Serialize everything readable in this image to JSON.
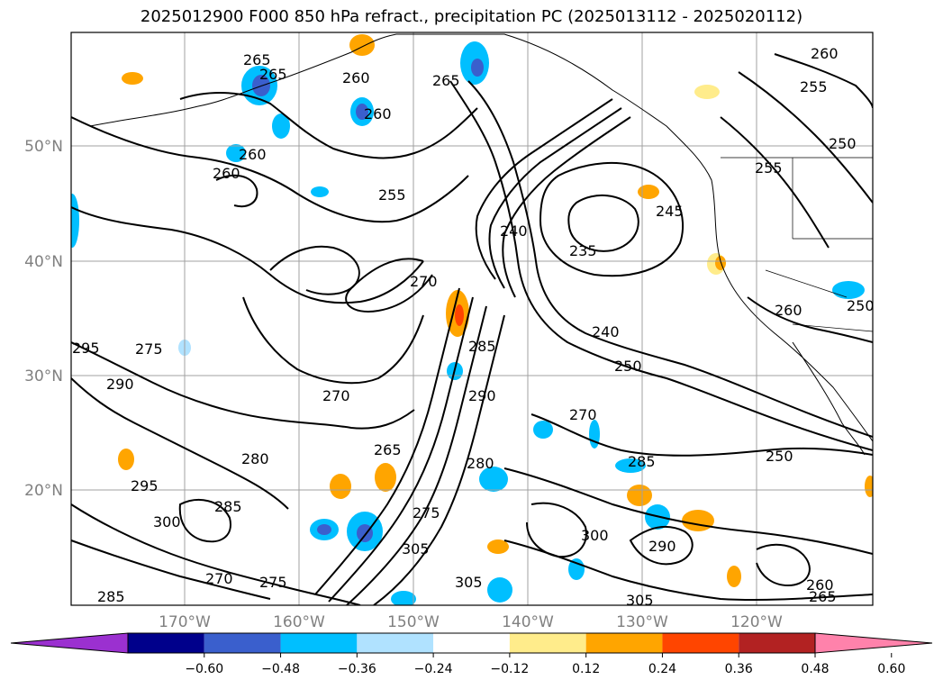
{
  "title": "2025012900 F000 850 hPa refract., precipitation PC (2025013112 - 2025020112)",
  "lat_labels": [
    "50°N",
    "40°N",
    "30°N",
    "20°N"
  ],
  "lon_labels": [
    "170°W",
    "160°W",
    "150°W",
    "140°W",
    "130°W",
    "120°W"
  ],
  "contour_labels": [
    "265",
    "260",
    "265",
    "260",
    "260",
    "255",
    "260",
    "255",
    "250",
    "255",
    "245",
    "240",
    "235",
    "270",
    "240",
    "250",
    "275",
    "290",
    "285",
    "290",
    "270",
    "250",
    "265",
    "280",
    "280",
    "270",
    "285",
    "295",
    "300",
    "285",
    "275",
    "305",
    "300",
    "290",
    "270",
    "275",
    "285",
    "305",
    "305",
    "260",
    "265",
    "295",
    "265",
    "260",
    "250",
    "260"
  ],
  "colorbar": {
    "ticks": [
      "−0.60",
      "−0.48",
      "−0.36",
      "−0.24",
      "−0.12",
      "0.12",
      "0.24",
      "0.36",
      "0.48",
      "0.60"
    ],
    "colors": [
      "#9b30d0",
      "#00008b",
      "#3a5fcd",
      "#00bfff",
      "#b0e2ff",
      "#ffffff",
      "#ffec8b",
      "#ffa500",
      "#ff4500",
      "#b22222",
      "#ff82ab"
    ]
  },
  "colors": {
    "contour": "#000000",
    "grid": "#a0a0a0",
    "coast": "#000000",
    "axis_label": "#808080"
  }
}
